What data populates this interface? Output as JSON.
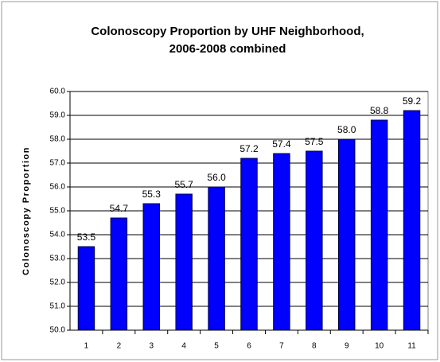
{
  "chart_data": {
    "type": "bar",
    "title": [
      "Colonoscopy Proportion by UHF Neighborhood,",
      "2006-2008 combined"
    ],
    "y_label": "Colonoscopy Proportion",
    "categories": [
      "1",
      "2",
      "3",
      "4",
      "5",
      "6",
      "7",
      "8",
      "9",
      "10",
      "11"
    ],
    "values": [
      53.5,
      54.7,
      55.3,
      55.7,
      56.0,
      57.2,
      57.4,
      57.5,
      58.0,
      58.8,
      59.2
    ],
    "value_labels": [
      "53.5",
      "54.7",
      "55.3",
      "55.7",
      "56.0",
      "57.2",
      "57.4",
      "57.5",
      "58.0",
      "58.8",
      "59.2"
    ],
    "color": "#0000ff",
    "ylim": [
      50,
      60
    ],
    "yticks": [
      {
        "value": 50,
        "label": "50.0"
      },
      {
        "value": 51,
        "label": "51.0"
      },
      {
        "value": 52,
        "label": "52.0"
      },
      {
        "value": 53,
        "label": "53.0"
      },
      {
        "value": 54,
        "label": "54.0"
      },
      {
        "value": 55,
        "label": "55.0"
      },
      {
        "value": 56,
        "label": "56.0"
      },
      {
        "value": 57,
        "label": "57.0"
      },
      {
        "value": 58,
        "label": "58.0"
      },
      {
        "value": 59,
        "label": "59.0"
      },
      {
        "value": 60,
        "label": "60.0"
      }
    ],
    "grid": true
  }
}
